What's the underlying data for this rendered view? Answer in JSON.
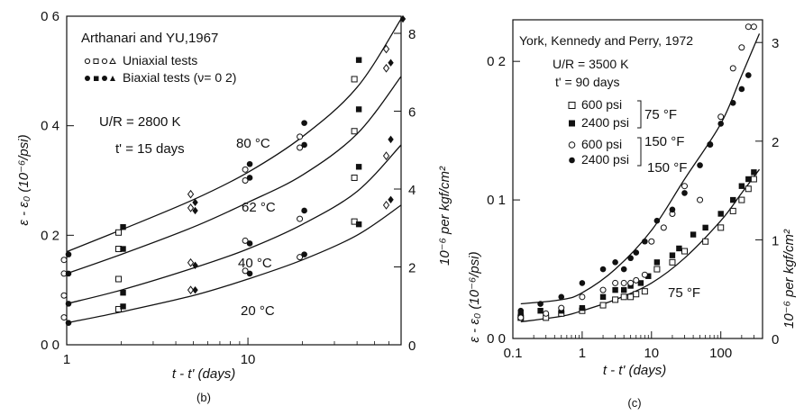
{
  "chart_data": [
    {
      "type": "scatter",
      "panel_label": "(b)",
      "title": "Arthanari and YU,1967",
      "xlabel": "t - t' (days)",
      "ylabel": "ε - ε₀ (10⁻⁶/psi)",
      "y2label": "10⁻⁶ per kgf/cm²",
      "xscale": "log",
      "xlim": [
        1,
        70
      ],
      "ylim": [
        0.0,
        0.6
      ],
      "y2lim": [
        0,
        8.44
      ],
      "grid": false,
      "x_ticks": [
        1,
        10
      ],
      "x_tick_labels": [
        "1",
        "10"
      ],
      "y_ticks": [
        0.0,
        0.2,
        0.4,
        0.6
      ],
      "y_tick_labels": [
        "0 0",
        "0 2",
        "0 4",
        "0 6"
      ],
      "y2_ticks": [
        0,
        2,
        4,
        6,
        8
      ],
      "y2_tick_labels": [
        "0",
        "2",
        "4",
        "6",
        "8"
      ],
      "legend": [
        {
          "label": "Uniaxial tests",
          "marker": "open"
        },
        {
          "label": "Biaxial tests (ν= 0 2)",
          "marker": "filled"
        }
      ],
      "annotations": [
        "U/R = 2800 K",
        "t' = 15 days"
      ],
      "series": [
        {
          "name": "80 °C",
          "curve": {
            "x": [
              1,
              2,
              5,
              10,
              20,
              40,
              70
            ],
            "y": [
              0.17,
              0.21,
              0.265,
              0.315,
              0.38,
              0.47,
              0.595
            ]
          },
          "open": {
            "x": [
              1,
              2,
              5,
              10,
              20,
              40,
              60
            ],
            "y": [
              0.155,
              0.205,
              0.275,
              0.32,
              0.38,
              0.485,
              0.54
            ]
          },
          "filled": {
            "x": [
              1,
              2,
              5,
              10,
              20,
              40,
              70
            ],
            "y": [
              0.165,
              0.215,
              0.26,
              0.33,
              0.405,
              0.52,
              0.595
            ]
          }
        },
        {
          "name": "62 °C",
          "curve": {
            "x": [
              1,
              2,
              5,
              10,
              20,
              40,
              70
            ],
            "y": [
              0.13,
              0.165,
              0.215,
              0.26,
              0.31,
              0.385,
              0.49
            ]
          },
          "open": {
            "x": [
              1,
              2,
              5,
              10,
              20,
              40,
              60
            ],
            "y": [
              0.13,
              0.175,
              0.25,
              0.3,
              0.36,
              0.39,
              0.505
            ]
          },
          "filled": {
            "x": [
              1,
              2,
              5,
              10,
              20,
              40,
              60
            ],
            "y": [
              0.13,
              0.175,
              0.245,
              0.305,
              0.365,
              0.43,
              0.515
            ]
          }
        },
        {
          "name": "40 °C",
          "curve": {
            "x": [
              1,
              2,
              5,
              10,
              20,
              40,
              70
            ],
            "y": [
              0.075,
              0.1,
              0.14,
              0.175,
              0.22,
              0.28,
              0.365
            ]
          },
          "open": {
            "x": [
              1,
              2,
              5,
              10,
              20,
              40,
              60
            ],
            "y": [
              0.09,
              0.12,
              0.15,
              0.19,
              0.23,
              0.305,
              0.345
            ]
          },
          "filled": {
            "x": [
              1,
              2,
              5,
              10,
              20,
              40,
              60
            ],
            "y": [
              0.075,
              0.095,
              0.145,
              0.185,
              0.245,
              0.325,
              0.375
            ]
          }
        },
        {
          "name": "20 °C",
          "curve": {
            "x": [
              1,
              2,
              5,
              10,
              20,
              40,
              70
            ],
            "y": [
              0.04,
              0.06,
              0.09,
              0.12,
              0.155,
              0.2,
              0.255
            ]
          },
          "open": {
            "x": [
              1,
              2,
              5,
              10,
              20,
              40,
              60
            ],
            "y": [
              0.05,
              0.065,
              0.1,
              0.135,
              0.16,
              0.225,
              0.255
            ]
          },
          "filled": {
            "x": [
              1,
              2,
              5,
              10,
              20,
              40,
              60
            ],
            "y": [
              0.04,
              0.07,
              0.1,
              0.13,
              0.165,
              0.22,
              0.265
            ]
          }
        }
      ]
    },
    {
      "type": "scatter",
      "panel_label": "(c)",
      "title": "York, Kennedy and Perry, 1972",
      "xlabel": "t - t' (days)",
      "ylabel": "ε - ε₀ (10⁻⁶/psi)",
      "y2label": "10⁻⁶ per kgf/cm²",
      "xscale": "log",
      "xlim": [
        0.1,
        400
      ],
      "ylim": [
        0.0,
        0.23
      ],
      "y2lim": [
        0,
        3.23
      ],
      "grid": false,
      "x_ticks": [
        0.1,
        1,
        10,
        100
      ],
      "x_tick_labels": [
        "0.1",
        "1",
        "10",
        "100"
      ],
      "y_ticks": [
        0.0,
        0.1,
        0.2
      ],
      "y_tick_labels": [
        "0 0",
        "0 1",
        "0 2"
      ],
      "y2_ticks": [
        0,
        1,
        2,
        3
      ],
      "y2_tick_labels": [
        "0",
        "1",
        "2",
        "3"
      ],
      "annotations": [
        "U/R = 3500 K",
        "t' = 90 days"
      ],
      "legend": [
        {
          "label": "600 psi",
          "group": "75 °F",
          "marker": "open-square"
        },
        {
          "label": "2400 psi",
          "group": "75 °F",
          "marker": "filled-square"
        },
        {
          "label": "600 psi",
          "group": "150 °F",
          "marker": "open-circle"
        },
        {
          "label": "2400 psi",
          "group": "150 °F",
          "marker": "filled-circle"
        }
      ],
      "curves": [
        {
          "name": "150 °F",
          "x": [
            0.13,
            0.5,
            1,
            3,
            10,
            30,
            100,
            200,
            360
          ],
          "y": [
            0.025,
            0.028,
            0.033,
            0.05,
            0.078,
            0.115,
            0.155,
            0.19,
            0.22
          ]
        },
        {
          "name": "75 °F",
          "x": [
            0.13,
            0.5,
            1,
            3,
            10,
            30,
            100,
            200,
            360
          ],
          "y": [
            0.012,
            0.016,
            0.02,
            0.028,
            0.04,
            0.058,
            0.085,
            0.105,
            0.122
          ]
        }
      ],
      "points": {
        "open_square": {
          "x": [
            0.13,
            0.3,
            0.5,
            1,
            2,
            3,
            4,
            5,
            6,
            8,
            12,
            20,
            30,
            60,
            100,
            150,
            200,
            250,
            300
          ],
          "y": [
            0.015,
            0.015,
            0.018,
            0.02,
            0.024,
            0.028,
            0.03,
            0.03,
            0.032,
            0.034,
            0.05,
            0.055,
            0.063,
            0.07,
            0.08,
            0.092,
            0.1,
            0.108,
            0.115
          ]
        },
        "filled_square": {
          "x": [
            0.13,
            0.25,
            0.5,
            1,
            2,
            3,
            4,
            5,
            7,
            9,
            12,
            20,
            25,
            40,
            60,
            100,
            150,
            200,
            250,
            300
          ],
          "y": [
            0.017,
            0.02,
            0.02,
            0.022,
            0.03,
            0.035,
            0.035,
            0.038,
            0.04,
            0.045,
            0.055,
            0.06,
            0.065,
            0.075,
            0.08,
            0.09,
            0.1,
            0.11,
            0.115,
            0.12
          ]
        },
        "open_circle": {
          "x": [
            0.13,
            0.3,
            0.5,
            1,
            2,
            3,
            4,
            5,
            6,
            8,
            10,
            15,
            20,
            30,
            50,
            70,
            100,
            150,
            200,
            250,
            300
          ],
          "y": [
            0.015,
            0.018,
            0.022,
            0.03,
            0.035,
            0.04,
            0.04,
            0.04,
            0.042,
            0.046,
            0.07,
            0.08,
            0.09,
            0.11,
            0.1,
            0.14,
            0.16,
            0.195,
            0.21,
            0.225,
            0.225
          ]
        },
        "filled_circle": {
          "x": [
            0.13,
            0.25,
            0.5,
            1,
            2,
            3,
            4,
            5,
            6,
            8,
            12,
            20,
            30,
            50,
            70,
            100,
            150,
            200,
            250
          ],
          "y": [
            0.02,
            0.025,
            0.03,
            0.04,
            0.05,
            0.055,
            0.05,
            0.058,
            0.062,
            0.07,
            0.085,
            0.093,
            0.105,
            0.125,
            0.14,
            0.155,
            0.17,
            0.18,
            0.19
          ]
        }
      }
    }
  ]
}
